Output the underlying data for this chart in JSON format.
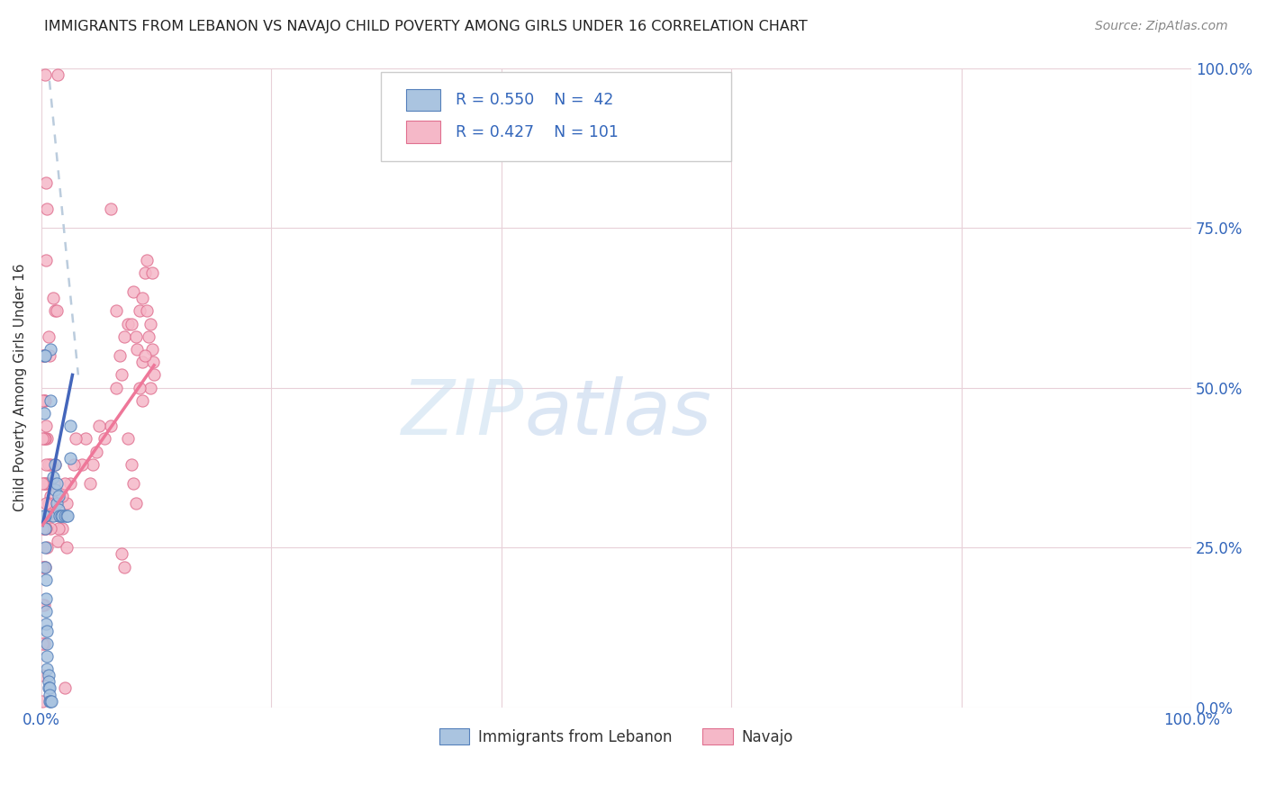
{
  "title": "IMMIGRANTS FROM LEBANON VS NAVAJO CHILD POVERTY AMONG GIRLS UNDER 16 CORRELATION CHART",
  "source": "Source: ZipAtlas.com",
  "ylabel": "Child Poverty Among Girls Under 16",
  "xlim": [
    0,
    1
  ],
  "ylim": [
    0,
    1
  ],
  "background_color": "#ffffff",
  "grid_color": "#e8d0d8",
  "blue_color": "#aac4e0",
  "pink_color": "#f5b8c8",
  "blue_edge_color": "#5580bb",
  "pink_edge_color": "#e07090",
  "blue_line_color": "#4466bb",
  "pink_line_color": "#ee7799",
  "dashed_line_color": "#bbccdd",
  "blue_scatter": [
    [
      0.008,
      0.56
    ],
    [
      0.008,
      0.48
    ],
    [
      0.01,
      0.36
    ],
    [
      0.01,
      0.3
    ],
    [
      0.012,
      0.38
    ],
    [
      0.012,
      0.34
    ],
    [
      0.013,
      0.35
    ],
    [
      0.013,
      0.32
    ],
    [
      0.015,
      0.33
    ],
    [
      0.015,
      0.31
    ],
    [
      0.016,
      0.3
    ],
    [
      0.017,
      0.3
    ],
    [
      0.018,
      0.3
    ],
    [
      0.02,
      0.3
    ],
    [
      0.022,
      0.3
    ],
    [
      0.023,
      0.3
    ],
    [
      0.003,
      0.3
    ],
    [
      0.003,
      0.28
    ],
    [
      0.003,
      0.25
    ],
    [
      0.003,
      0.22
    ],
    [
      0.004,
      0.2
    ],
    [
      0.004,
      0.17
    ],
    [
      0.004,
      0.15
    ],
    [
      0.004,
      0.13
    ],
    [
      0.005,
      0.12
    ],
    [
      0.005,
      0.1
    ],
    [
      0.005,
      0.08
    ],
    [
      0.005,
      0.06
    ],
    [
      0.006,
      0.05
    ],
    [
      0.006,
      0.04
    ],
    [
      0.006,
      0.03
    ],
    [
      0.007,
      0.03
    ],
    [
      0.007,
      0.02
    ],
    [
      0.007,
      0.01
    ],
    [
      0.008,
      0.01
    ],
    [
      0.009,
      0.01
    ],
    [
      0.002,
      0.55
    ],
    [
      0.002,
      0.46
    ],
    [
      0.002,
      0.3
    ],
    [
      0.003,
      0.55
    ],
    [
      0.025,
      0.44
    ],
    [
      0.025,
      0.39
    ]
  ],
  "pink_scatter": [
    [
      0.003,
      0.99
    ],
    [
      0.014,
      0.99
    ],
    [
      0.004,
      0.82
    ],
    [
      0.004,
      0.7
    ],
    [
      0.005,
      0.78
    ],
    [
      0.06,
      0.78
    ],
    [
      0.01,
      0.64
    ],
    [
      0.012,
      0.62
    ],
    [
      0.013,
      0.62
    ],
    [
      0.065,
      0.62
    ],
    [
      0.006,
      0.58
    ],
    [
      0.007,
      0.55
    ],
    [
      0.075,
      0.6
    ],
    [
      0.072,
      0.58
    ],
    [
      0.068,
      0.55
    ],
    [
      0.08,
      0.65
    ],
    [
      0.078,
      0.6
    ],
    [
      0.082,
      0.58
    ],
    [
      0.085,
      0.62
    ],
    [
      0.083,
      0.56
    ],
    [
      0.088,
      0.54
    ],
    [
      0.09,
      0.68
    ],
    [
      0.088,
      0.64
    ],
    [
      0.092,
      0.62
    ],
    [
      0.095,
      0.6
    ],
    [
      0.093,
      0.58
    ],
    [
      0.096,
      0.56
    ],
    [
      0.097,
      0.54
    ],
    [
      0.098,
      0.52
    ],
    [
      0.095,
      0.5
    ],
    [
      0.096,
      0.68
    ],
    [
      0.092,
      0.7
    ],
    [
      0.09,
      0.55
    ],
    [
      0.085,
      0.5
    ],
    [
      0.088,
      0.48
    ],
    [
      0.07,
      0.52
    ],
    [
      0.065,
      0.5
    ],
    [
      0.06,
      0.44
    ],
    [
      0.055,
      0.42
    ],
    [
      0.05,
      0.44
    ],
    [
      0.048,
      0.4
    ],
    [
      0.045,
      0.38
    ],
    [
      0.042,
      0.35
    ],
    [
      0.038,
      0.42
    ],
    [
      0.035,
      0.38
    ],
    [
      0.03,
      0.42
    ],
    [
      0.028,
      0.38
    ],
    [
      0.025,
      0.35
    ],
    [
      0.022,
      0.32
    ],
    [
      0.02,
      0.35
    ],
    [
      0.018,
      0.33
    ],
    [
      0.018,
      0.28
    ],
    [
      0.016,
      0.3
    ],
    [
      0.015,
      0.28
    ],
    [
      0.014,
      0.26
    ],
    [
      0.012,
      0.38
    ],
    [
      0.011,
      0.35
    ],
    [
      0.01,
      0.32
    ],
    [
      0.009,
      0.3
    ],
    [
      0.008,
      0.38
    ],
    [
      0.008,
      0.33
    ],
    [
      0.008,
      0.28
    ],
    [
      0.007,
      0.35
    ],
    [
      0.006,
      0.38
    ],
    [
      0.006,
      0.32
    ],
    [
      0.005,
      0.42
    ],
    [
      0.005,
      0.35
    ],
    [
      0.005,
      0.3
    ],
    [
      0.005,
      0.25
    ],
    [
      0.004,
      0.44
    ],
    [
      0.004,
      0.38
    ],
    [
      0.004,
      0.32
    ],
    [
      0.004,
      0.28
    ],
    [
      0.003,
      0.55
    ],
    [
      0.003,
      0.48
    ],
    [
      0.003,
      0.42
    ],
    [
      0.003,
      0.35
    ],
    [
      0.003,
      0.28
    ],
    [
      0.003,
      0.22
    ],
    [
      0.002,
      0.55
    ],
    [
      0.002,
      0.48
    ],
    [
      0.002,
      0.42
    ],
    [
      0.002,
      0.35
    ],
    [
      0.002,
      0.28
    ],
    [
      0.002,
      0.22
    ],
    [
      0.002,
      0.16
    ],
    [
      0.002,
      0.1
    ],
    [
      0.001,
      0.55
    ],
    [
      0.001,
      0.48
    ],
    [
      0.001,
      0.42
    ],
    [
      0.001,
      0.35
    ],
    [
      0.001,
      0.28
    ],
    [
      0.001,
      0.22
    ],
    [
      0.001,
      0.16
    ],
    [
      0.001,
      0.1
    ],
    [
      0.001,
      0.05
    ],
    [
      0.001,
      0.01
    ],
    [
      0.02,
      0.03
    ],
    [
      0.022,
      0.25
    ],
    [
      0.07,
      0.24
    ],
    [
      0.072,
      0.22
    ],
    [
      0.075,
      0.42
    ],
    [
      0.078,
      0.38
    ],
    [
      0.08,
      0.35
    ],
    [
      0.082,
      0.32
    ]
  ],
  "blue_trendline": [
    [
      0.001,
      0.285
    ],
    [
      0.027,
      0.52
    ]
  ],
  "pink_trendline": [
    [
      0.001,
      0.285
    ],
    [
      0.098,
      0.535
    ]
  ],
  "diagonal_line": [
    [
      0.007,
      0.98
    ],
    [
      0.032,
      0.52
    ]
  ]
}
